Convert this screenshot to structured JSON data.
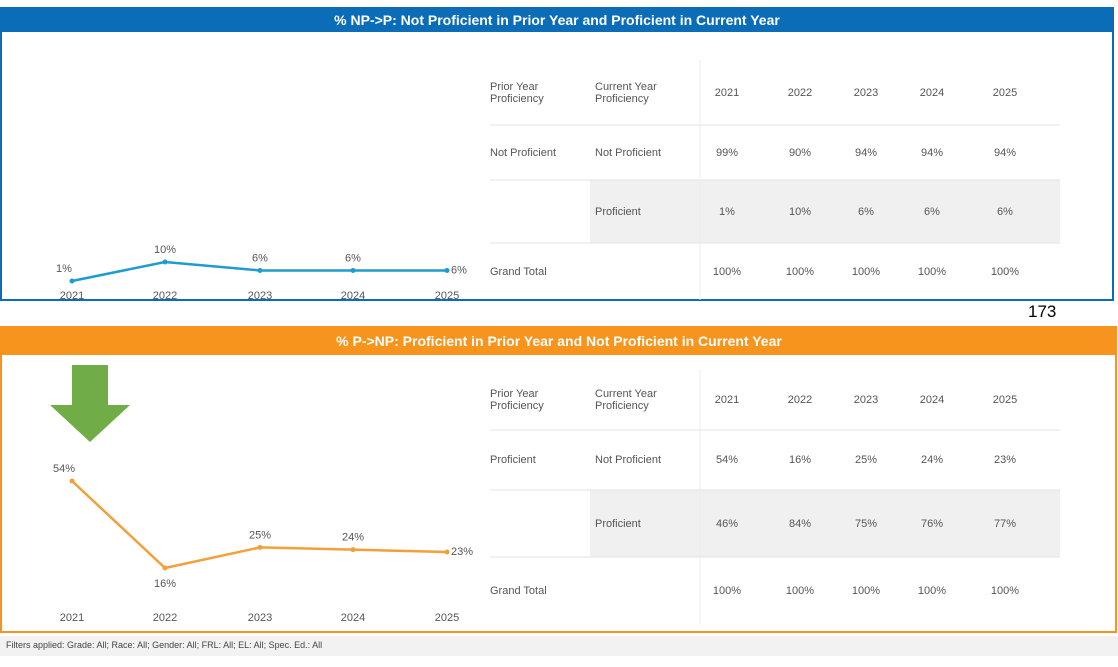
{
  "page_number": "173",
  "filters": "Filters applied: Grade: All; Race: All; Gender: All; FRL: All; EL: All; Spec. Ed.: All",
  "chart_data": [
    {
      "type": "line",
      "title": "% NP->P: Not Proficient in Prior Year and Proficient in Current Year",
      "categories": [
        "2021",
        "2022",
        "2023",
        "2024",
        "2025"
      ],
      "values": [
        1,
        10,
        6,
        6,
        6
      ],
      "value_labels": [
        "1%",
        "10%",
        "6%",
        "6%",
        "6%"
      ],
      "color": "#1f9ccf"
    },
    {
      "type": "line",
      "title": "% P->NP: Proficient in Prior Year and Not Proficient in Current Year",
      "categories": [
        "2021",
        "2022",
        "2023",
        "2024",
        "2025"
      ],
      "values": [
        54,
        16,
        25,
        24,
        23
      ],
      "value_labels": [
        "54%",
        "16%",
        "25%",
        "24%",
        "23%"
      ],
      "color": "#f2a03a"
    }
  ],
  "tables": [
    {
      "header": [
        "Prior Year Proficiency",
        "Current Year Proficiency",
        "2021",
        "2022",
        "2023",
        "2024",
        "2025"
      ],
      "rows": [
        [
          "Not Proficient",
          "Not Proficient",
          "99%",
          "90%",
          "94%",
          "94%",
          "94%"
        ],
        [
          null,
          "Proficient",
          "1%",
          "10%",
          "6%",
          "6%",
          "6%"
        ],
        [
          "Grand Total",
          null,
          "100%",
          "100%",
          "100%",
          "100%",
          "100%"
        ]
      ]
    },
    {
      "header": [
        "Prior Year Proficiency",
        "Current Year Proficiency",
        "2021",
        "2022",
        "2023",
        "2024",
        "2025"
      ],
      "rows": [
        [
          "Proficient",
          "Not Proficient",
          "54%",
          "16%",
          "25%",
          "24%",
          "23%"
        ],
        [
          null,
          "Proficient",
          "46%",
          "84%",
          "75%",
          "76%",
          "77%"
        ],
        [
          "Grand Total",
          null,
          "100%",
          "100%",
          "100%",
          "100%",
          "100%"
        ]
      ]
    }
  ]
}
